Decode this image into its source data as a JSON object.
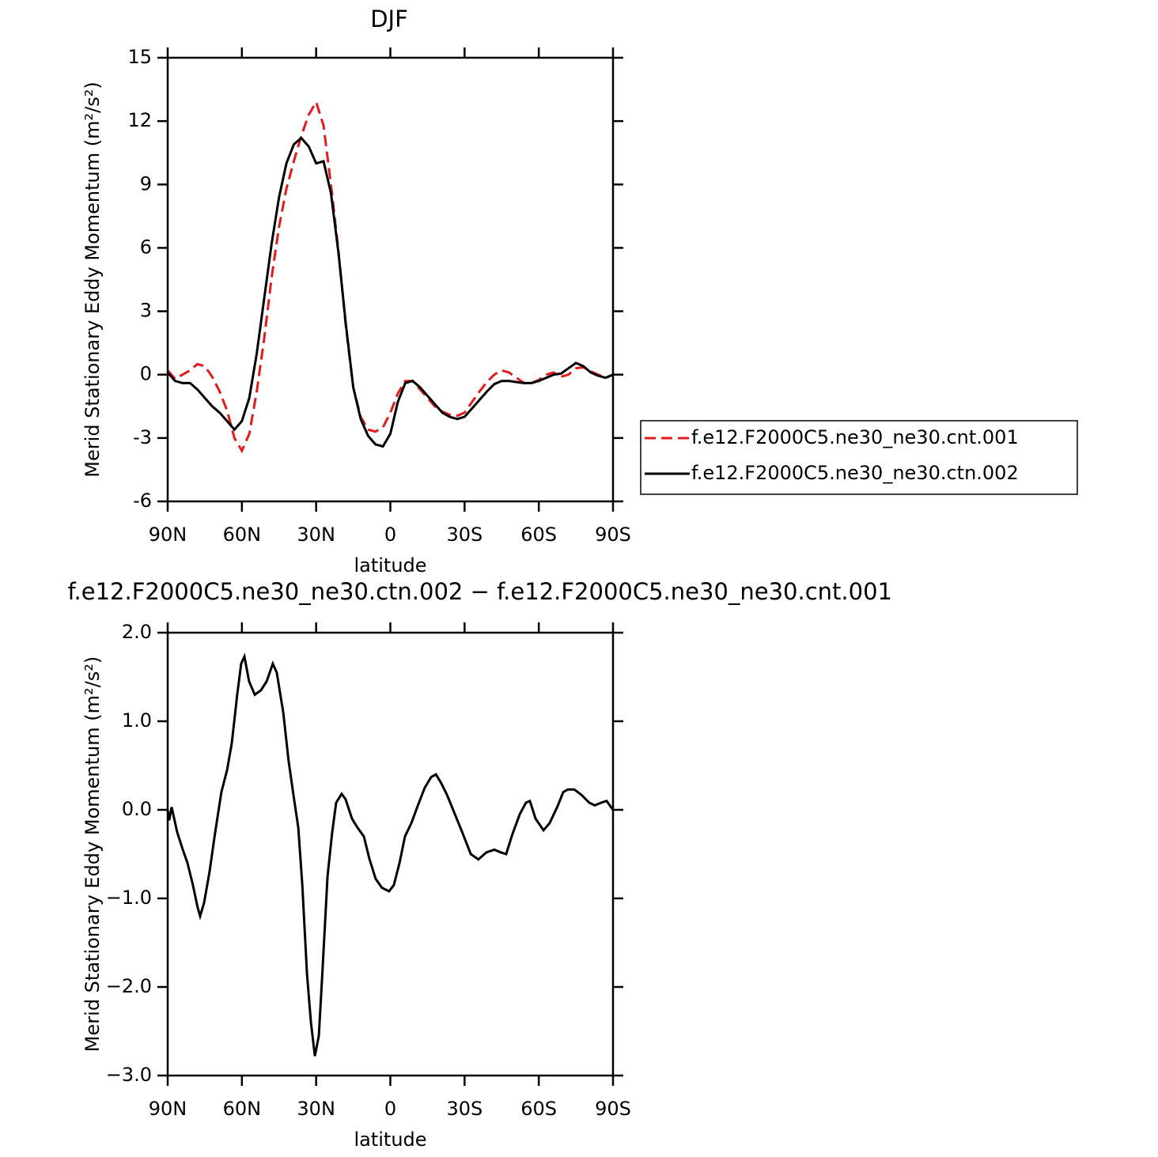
{
  "chart_data": [
    {
      "type": "line",
      "title": "DJF",
      "xlabel": "latitude",
      "ylabel": "Merid Stationary Eddy Momentum (m²/s²)",
      "x": [
        90,
        87,
        84,
        81,
        78,
        75,
        72,
        69,
        66,
        63,
        60,
        57,
        54,
        51,
        48,
        45,
        42,
        39,
        36,
        33,
        30,
        27,
        24,
        21,
        18,
        15,
        12,
        9,
        6,
        3,
        0,
        -3,
        -6,
        -9,
        -12,
        -15,
        -18,
        -21,
        -24,
        -27,
        -30,
        -33,
        -36,
        -39,
        -42,
        -45,
        -48,
        -51,
        -54,
        -57,
        -60,
        -63,
        -66,
        -69,
        -72,
        -75,
        -78,
        -81,
        -84,
        -87,
        -90
      ],
      "series": [
        {
          "name": "f.e12.F2000C5.ne30_ne30.cnt.001",
          "color": "#e41a1c",
          "line_style": "dashed",
          "values": [
            0.2,
            -0.2,
            0.0,
            0.2,
            0.5,
            0.4,
            -0.1,
            -0.8,
            -1.7,
            -3.0,
            -3.6,
            -2.8,
            -0.8,
            1.7,
            4.6,
            7.0,
            8.8,
            10.1,
            11.3,
            12.3,
            12.9,
            11.8,
            9.0,
            5.9,
            2.3,
            -0.6,
            -2.0,
            -2.6,
            -2.7,
            -2.5,
            -1.8,
            -0.9,
            -0.3,
            -0.3,
            -0.7,
            -1.1,
            -1.5,
            -1.75,
            -1.9,
            -1.95,
            -1.8,
            -1.3,
            -0.8,
            -0.35,
            0.0,
            0.2,
            0.1,
            -0.15,
            -0.4,
            -0.4,
            -0.25,
            0.0,
            0.1,
            -0.1,
            0.0,
            0.3,
            0.35,
            0.15,
            0.0,
            -0.15,
            0.0
          ]
        },
        {
          "name": "f.e12.F2000C5.ne30_ne30.ctn.002",
          "color": "#000000",
          "line_style": "solid",
          "values": [
            0.1,
            -0.3,
            -0.4,
            -0.4,
            -0.7,
            -1.1,
            -1.5,
            -1.8,
            -2.2,
            -2.6,
            -2.2,
            -1.1,
            1.0,
            3.6,
            6.2,
            8.4,
            10.0,
            10.9,
            11.2,
            10.8,
            10.0,
            10.1,
            8.6,
            5.8,
            2.4,
            -0.6,
            -2.1,
            -2.9,
            -3.3,
            -3.4,
            -2.8,
            -1.3,
            -0.4,
            -0.3,
            -0.6,
            -1.0,
            -1.4,
            -1.8,
            -2.0,
            -2.1,
            -2.0,
            -1.6,
            -1.2,
            -0.8,
            -0.45,
            -0.3,
            -0.3,
            -0.35,
            -0.4,
            -0.4,
            -0.3,
            -0.15,
            0.0,
            0.05,
            0.3,
            0.55,
            0.4,
            0.1,
            -0.05,
            -0.15,
            0.0
          ]
        }
      ],
      "xlim": [
        90,
        -90
      ],
      "xticks": [
        {
          "value": 90,
          "label": "90N"
        },
        {
          "value": 60,
          "label": "60N"
        },
        {
          "value": 30,
          "label": "30N"
        },
        0,
        {
          "value": -30,
          "label": "30S"
        },
        {
          "value": -60,
          "label": "60S"
        },
        {
          "value": -90,
          "label": "90S"
        }
      ],
      "ylim": [
        -6,
        15
      ],
      "yticks": [
        -6,
        -3,
        0,
        3,
        6,
        9,
        12,
        15
      ],
      "legend": "right"
    },
    {
      "type": "line",
      "title": "f.e12.F2000C5.ne30_ne30.ctn.002 − f.e12.F2000C5.ne30_ne30.cnt.001",
      "xlabel": "latitude",
      "ylabel": "Merid Stationary Eddy Momentum (m²/s²)",
      "x": [
        90,
        89.4,
        88.4,
        86.2,
        83.9,
        82.0,
        79.8,
        77.9,
        76.9,
        75.3,
        73.1,
        70.8,
        68.3,
        66.0,
        64.1,
        61.9,
        60.3,
        59.0,
        57.1,
        54.8,
        52.3,
        50.0,
        47.5,
        45.9,
        43.3,
        41.1,
        38.8,
        37.2,
        35.6,
        33.7,
        32.1,
        30.5,
        28.9,
        27.3,
        25.4,
        23.5,
        21.9,
        19.7,
        18.1,
        15.5,
        13.3,
        10.7,
        8.5,
        5.9,
        3.4,
        0.5,
        -1.4,
        -3.7,
        -5.9,
        -8.5,
        -11.0,
        -13.9,
        -16.5,
        -18.4,
        -20.6,
        -22.9,
        -26.1,
        -29.3,
        -32.5,
        -35.6,
        -38.8,
        -42.0,
        -44.6,
        -46.8,
        -49.4,
        -52.3,
        -54.8,
        -56.4,
        -58.7,
        -61.9,
        -64.4,
        -67.6,
        -69.9,
        -71.8,
        -74.3,
        -77.2,
        -80.4,
        -82.6,
        -85.2,
        -87.4,
        -90
      ],
      "series": [
        {
          "name": null,
          "color": "#000000",
          "line_style": "solid",
          "values": [
            0,
            -0.12,
            0.03,
            -0.25,
            -0.45,
            -0.6,
            -0.85,
            -1.1,
            -1.2,
            -1.05,
            -0.7,
            -0.25,
            0.2,
            0.45,
            0.75,
            1.3,
            1.65,
            1.73,
            1.45,
            1.3,
            1.35,
            1.45,
            1.65,
            1.55,
            1.1,
            0.55,
            0.1,
            -0.2,
            -0.85,
            -1.85,
            -2.4,
            -2.78,
            -2.55,
            -1.75,
            -0.75,
            -0.25,
            0.08,
            0.18,
            0.12,
            -0.1,
            -0.2,
            -0.3,
            -0.55,
            -0.78,
            -0.88,
            -0.92,
            -0.85,
            -0.6,
            -0.3,
            -0.15,
            0.04,
            0.25,
            0.37,
            0.4,
            0.3,
            0.17,
            -0.05,
            -0.27,
            -0.5,
            -0.56,
            -0.48,
            -0.45,
            -0.48,
            -0.5,
            -0.27,
            -0.05,
            0.08,
            0.1,
            -0.1,
            -0.23,
            -0.15,
            0.04,
            0.2,
            0.23,
            0.23,
            0.17,
            0.08,
            0.05,
            0.08,
            0.1,
            0
          ]
        }
      ],
      "xlim": [
        90,
        -90
      ],
      "xticks": [
        {
          "value": 90,
          "label": "90N"
        },
        {
          "value": 60,
          "label": "60N"
        },
        {
          "value": 30,
          "label": "30N"
        },
        0,
        {
          "value": -30,
          "label": "30S"
        },
        {
          "value": -60,
          "label": "60S"
        },
        {
          "value": -90,
          "label": "90S"
        }
      ],
      "ylim": [
        -3,
        2
      ],
      "yticks": [
        {
          "value": -3,
          "label": "−3.0"
        },
        {
          "value": -2,
          "label": "−2.0"
        },
        {
          "value": -1,
          "label": "−1.0"
        },
        {
          "value": 0,
          "label": "0.0"
        },
        {
          "value": 1,
          "label": "1.0"
        },
        {
          "value": 2,
          "label": "2.0"
        }
      ]
    }
  ]
}
